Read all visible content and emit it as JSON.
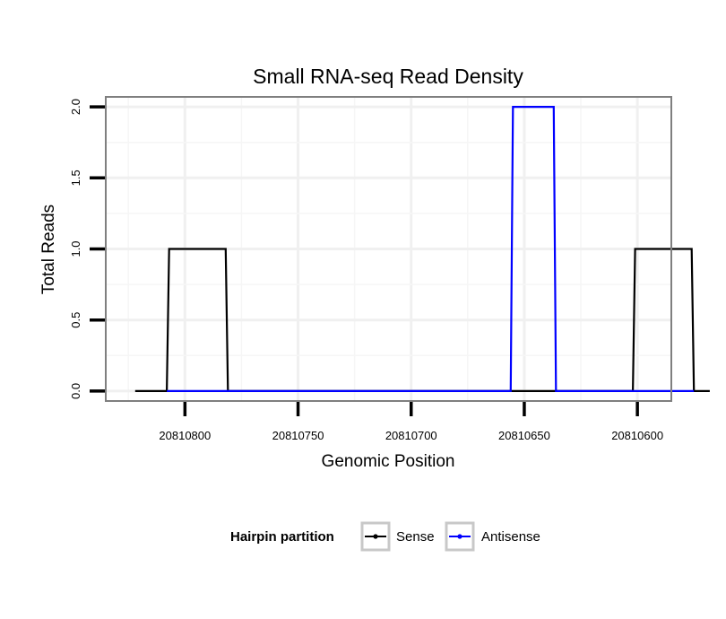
{
  "chart_data": {
    "type": "line",
    "title": "Small RNA-seq Read Density",
    "xlabel": "Genomic Position",
    "ylabel": "Total Reads",
    "x_reversed": true,
    "xlim": [
      20810835,
      20810585
    ],
    "ylim": [
      -0.07,
      2.07
    ],
    "x_ticks": [
      20810800,
      20810750,
      20810700,
      20810650,
      20810600
    ],
    "x_tick_labels": [
      "20810800",
      "20810750",
      "20810700",
      "20810650",
      "20810600"
    ],
    "y_ticks": [
      0,
      0.5,
      1,
      1.5,
      2
    ],
    "y_tick_labels": [
      "0.0",
      "0.5",
      "1.0",
      "1.5",
      "2.0"
    ],
    "grid": true,
    "legend": {
      "title": "Hairpin partition",
      "position": "bottom"
    },
    "series": [
      {
        "name": "Sense",
        "color": "#000000",
        "x": [
          20810822,
          20810808,
          20810807,
          20810782,
          20810781,
          20810602,
          20810601,
          20810576,
          20810575,
          20810573,
          20810572,
          20810568
        ],
        "y": [
          0,
          0,
          1,
          1,
          0,
          0,
          1,
          1,
          0,
          0,
          0,
          0
        ]
      },
      {
        "name": "Antisense",
        "color": "#0000ff",
        "x": [
          20810808,
          20810781,
          20810656,
          20810655,
          20810637,
          20810636,
          20810602,
          20810575
        ],
        "y": [
          0,
          0,
          0,
          2,
          2,
          0,
          0,
          0
        ]
      }
    ]
  }
}
